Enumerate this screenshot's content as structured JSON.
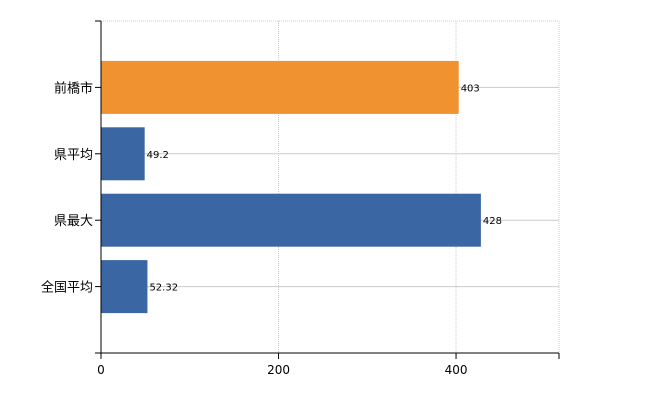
{
  "chart_data": {
    "type": "bar",
    "orientation": "horizontal",
    "categories": [
      "前橋市",
      "県平均",
      "県最大",
      "全国平均"
    ],
    "values": [
      403,
      49.2,
      428,
      52.32
    ],
    "value_labels": [
      "403",
      "49.2",
      "428",
      "52.32"
    ],
    "bar_colors": [
      "#F0922F",
      "#3A67A3",
      "#3A67A3",
      "#3A67A3"
    ],
    "xlim": [
      0,
      516
    ],
    "x_ticks": [
      0,
      200,
      400
    ],
    "x_tick_labels": [
      "0",
      "200",
      "400"
    ],
    "grid": true,
    "grid_color": "#cccccc",
    "axis_color": "#000000",
    "title": "",
    "xlabel": "",
    "ylabel": ""
  }
}
